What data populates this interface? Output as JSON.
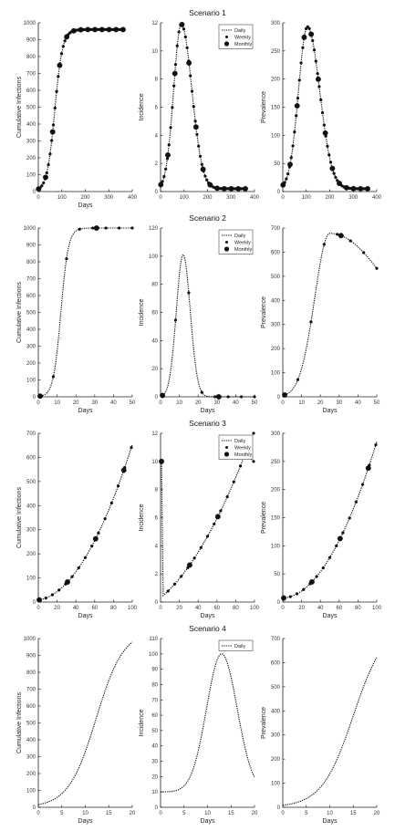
{
  "chart_data": [
    {
      "type": "line",
      "title": "",
      "scenario_title": "Scenario 1",
      "xlabel": "Days",
      "ylabel": "Cumulative Infections",
      "xlim": [
        0,
        400
      ],
      "ylim": [
        0,
        1000
      ],
      "xticks": [
        0,
        100,
        200,
        300,
        400
      ],
      "yticks": [
        0,
        100,
        200,
        300,
        400,
        500,
        600,
        700,
        800,
        900,
        1000
      ],
      "series": [
        {
          "kind": "daily",
          "model": "logistic",
          "L": 960,
          "k": 0.06,
          "x0": 70,
          "xmax": 365
        },
        {
          "kind": "weekly",
          "step": 7,
          "xmax": 365
        },
        {
          "kind": "monthly",
          "step": 30,
          "xmax": 365
        }
      ]
    },
    {
      "type": "line",
      "title": "",
      "scenario_title": "",
      "xlabel": "",
      "ylabel": "Incidence",
      "xlim": [
        0,
        400
      ],
      "ylim": [
        0,
        12
      ],
      "xticks": [
        0,
        100,
        200,
        300,
        400
      ],
      "yticks": [
        0,
        2,
        4,
        6,
        8,
        10,
        12
      ],
      "legend": {
        "position": "top-right",
        "entries": [
          "Daily",
          "Weekly",
          "Monthly"
        ]
      },
      "series": [
        {
          "kind": "daily",
          "model": "bell",
          "peak": 11.9,
          "mu": 88,
          "sl": 32,
          "sr": 45,
          "floor": 0.2,
          "xmax": 365
        },
        {
          "kind": "weekly",
          "step": 7,
          "xmax": 365
        },
        {
          "kind": "monthly",
          "step": 30,
          "xmax": 365
        }
      ]
    },
    {
      "type": "line",
      "title": "",
      "scenario_title": "",
      "xlabel": "",
      "ylabel": "Prevalence",
      "xlim": [
        0,
        400
      ],
      "ylim": [
        0,
        300
      ],
      "xticks": [
        0,
        100,
        200,
        300,
        400
      ],
      "yticks": [
        0,
        50,
        100,
        150,
        200,
        250,
        300
      ],
      "series": [
        {
          "kind": "daily",
          "model": "bell",
          "peak": 293,
          "mu": 105,
          "sl": 38,
          "sr": 52,
          "floor": 5,
          "xmax": 365
        },
        {
          "kind": "weekly",
          "step": 7,
          "xmax": 365
        },
        {
          "kind": "monthly",
          "step": 30,
          "xmax": 365
        }
      ]
    },
    {
      "type": "line",
      "title": "",
      "scenario_title": "Scenario 2",
      "xlabel": "Days",
      "ylabel": "Cumulative Infections",
      "xlim": [
        0,
        50
      ],
      "ylim": [
        0,
        1000
      ],
      "xticks": [
        0,
        10,
        20,
        30,
        40,
        50
      ],
      "yticks": [
        0,
        100,
        200,
        300,
        400,
        500,
        600,
        700,
        800,
        900,
        1000
      ],
      "series": [
        {
          "kind": "daily",
          "model": "logistic",
          "L": 1000,
          "k": 0.5,
          "x0": 12,
          "xmax": 50
        },
        {
          "kind": "weekly",
          "step": 7,
          "xmax": 50
        },
        {
          "kind": "monthly",
          "step": 30,
          "xmax": 50
        }
      ]
    },
    {
      "type": "line",
      "title": "",
      "scenario_title": "",
      "xlabel": "Days",
      "ylabel": "Incidence",
      "xlim": [
        0,
        50
      ],
      "ylim": [
        0,
        120
      ],
      "xticks": [
        0,
        10,
        20,
        30,
        40,
        50
      ],
      "yticks": [
        0,
        20,
        40,
        60,
        80,
        100,
        120
      ],
      "legend": {
        "position": "top-right",
        "entries": [
          "Daily",
          "Weekly",
          "Monthly"
        ]
      },
      "series": [
        {
          "kind": "daily",
          "model": "bell",
          "peak": 101,
          "mu": 12,
          "sl": 3.6,
          "sr": 3.8,
          "floor": 0,
          "xmax": 50
        },
        {
          "kind": "weekly",
          "step": 7,
          "xmax": 50
        },
        {
          "kind": "monthly",
          "step": 30,
          "xmax": 50
        }
      ]
    },
    {
      "type": "line",
      "title": "",
      "scenario_title": "",
      "xlabel": "Days",
      "ylabel": "Prevalence",
      "xlim": [
        0,
        50
      ],
      "ylim": [
        0,
        700
      ],
      "xticks": [
        0,
        10,
        20,
        30,
        40,
        50
      ],
      "yticks": [
        0,
        100,
        200,
        300,
        400,
        500,
        600,
        700
      ],
      "series": [
        {
          "kind": "daily",
          "model": "bell",
          "peak": 678,
          "mu": 25,
          "sl": 8,
          "sr": 36,
          "floor": 0,
          "xmax": 50
        },
        {
          "kind": "weekly",
          "step": 7,
          "xmax": 50
        },
        {
          "kind": "monthly",
          "step": 30,
          "xmax": 50
        }
      ]
    },
    {
      "type": "line",
      "title": "",
      "scenario_title": "Scenario 3",
      "xlabel": "Days",
      "ylabel": "Cumulative Infections",
      "xlim": [
        0,
        100
      ],
      "ylim": [
        0,
        700
      ],
      "xticks": [
        0,
        20,
        40,
        60,
        80,
        100
      ],
      "yticks": [
        0,
        100,
        200,
        300,
        400,
        500,
        600,
        700
      ],
      "series": [
        {
          "kind": "daily",
          "model": "poly",
          "a": 8,
          "b": 0.6,
          "c": 0.0585,
          "xmax": 100
        },
        {
          "kind": "weekly",
          "step": 7,
          "xmax": 100
        },
        {
          "kind": "monthly",
          "step": 30,
          "xmax": 100
        }
      ]
    },
    {
      "type": "line",
      "title": "",
      "scenario_title": "",
      "xlabel": "Days",
      "ylabel": "Incidence",
      "xlim": [
        0,
        100
      ],
      "ylim": [
        0,
        12
      ],
      "xticks": [
        0,
        20,
        40,
        60,
        80,
        100
      ],
      "yticks": [
        0,
        2,
        4,
        6,
        8,
        10,
        12
      ],
      "legend": {
        "position": "top-right",
        "entries": [
          "Daily",
          "Weekly",
          "Monthly"
        ]
      },
      "series": [
        {
          "kind": "daily",
          "model": "poly",
          "a": 0.3,
          "b": 0.055,
          "c": 0.00065,
          "xmax": 90,
          "start_point": [
            1,
            10
          ]
        },
        {
          "kind": "weekly",
          "step": 7,
          "xmax": 99,
          "extra_point": [
            99,
            10
          ],
          "start_point": [
            1,
            10
          ]
        },
        {
          "kind": "monthly",
          "step": 30,
          "xmax": 100,
          "start_point": [
            1,
            10
          ]
        }
      ]
    },
    {
      "type": "line",
      "title": "",
      "scenario_title": "",
      "xlabel": "Days",
      "ylabel": "Prevalence",
      "xlim": [
        0,
        100
      ],
      "ylim": [
        0,
        300
      ],
      "xticks": [
        0,
        20,
        40,
        60,
        80,
        100
      ],
      "yticks": [
        0,
        50,
        100,
        150,
        200,
        250,
        300
      ],
      "series": [
        {
          "kind": "daily",
          "model": "poly",
          "a": 7,
          "b": 0.1,
          "c": 0.0268,
          "xmax": 100
        },
        {
          "kind": "weekly",
          "step": 7,
          "xmax": 100
        },
        {
          "kind": "monthly",
          "step": 30,
          "xmax": 100
        }
      ]
    },
    {
      "type": "line",
      "title": "",
      "scenario_title": "Scenario 4",
      "xlabel": "Days",
      "ylabel": "Cumulative Infections",
      "xlim": [
        0,
        20
      ],
      "ylim": [
        0,
        1000
      ],
      "xticks": [
        0,
        5,
        10,
        15,
        20
      ],
      "yticks": [
        0,
        100,
        200,
        300,
        400,
        500,
        600,
        700,
        800,
        900,
        1000
      ],
      "series": [
        {
          "kind": "daily",
          "model": "logistic",
          "L": 1050,
          "k": 0.34,
          "x0": 12.3,
          "xmax": 20
        }
      ]
    },
    {
      "type": "line",
      "title": "",
      "scenario_title": "",
      "xlabel": "Days",
      "ylabel": "Incidence",
      "xlim": [
        0,
        20
      ],
      "ylim": [
        0,
        110
      ],
      "xticks": [
        0,
        5,
        10,
        15,
        20
      ],
      "yticks": [
        0,
        10,
        20,
        30,
        40,
        50,
        60,
        70,
        80,
        90,
        100,
        110
      ],
      "legend": {
        "position": "top-right",
        "entries": [
          "Daily"
        ]
      },
      "series": [
        {
          "kind": "daily",
          "model": "bell",
          "peak": 100,
          "mu": 13,
          "sl": 3.2,
          "sr": 3.3,
          "floor": 10,
          "xmax": 20
        }
      ]
    },
    {
      "type": "line",
      "title": "",
      "scenario_title": "",
      "xlabel": "Days",
      "ylabel": "Prevalence",
      "xlim": [
        0,
        20
      ],
      "ylim": [
        0,
        700
      ],
      "xticks": [
        0,
        5,
        10,
        15,
        20
      ],
      "yticks": [
        0,
        100,
        200,
        300,
        400,
        500,
        600,
        700
      ],
      "series": [
        {
          "kind": "daily",
          "model": "logistic",
          "L": 760,
          "k": 0.3,
          "x0": 15,
          "xmax": 20
        }
      ]
    }
  ]
}
